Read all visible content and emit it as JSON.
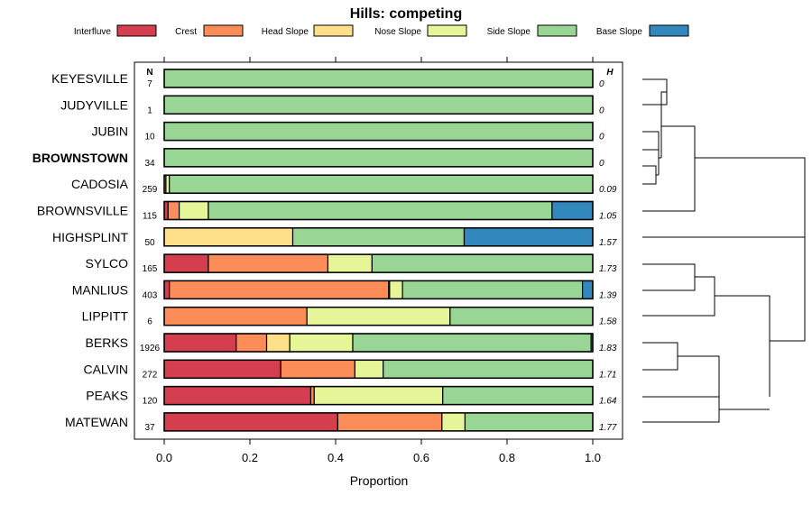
{
  "chart_data": {
    "type": "bar",
    "stacked": true,
    "orientation": "horizontal",
    "title": "Hills: competing",
    "xlabel": "Proportion",
    "xlim": [
      0,
      1
    ],
    "xticks": [
      "0.0",
      "0.2",
      "0.4",
      "0.6",
      "0.8",
      "1.0"
    ],
    "n_header": "N",
    "h_header": "H",
    "legend_placement": "top",
    "legend": [
      {
        "name": "Interfluve",
        "color": "#d53e4f"
      },
      {
        "name": "Crest",
        "color": "#fc8d59"
      },
      {
        "name": "Head Slope",
        "color": "#fee08b"
      },
      {
        "name": "Nose Slope",
        "color": "#e6f598"
      },
      {
        "name": "Side Slope",
        "color": "#99d594"
      },
      {
        "name": "Base Slope",
        "color": "#3288bd"
      }
    ],
    "rows": [
      {
        "label": "KEYESVILLE",
        "n": "7",
        "h": "0",
        "bold": false,
        "values": [
          0,
          0,
          0,
          0,
          1.0,
          0
        ]
      },
      {
        "label": "JUDYVILLE",
        "n": "1",
        "h": "0",
        "bold": false,
        "values": [
          0,
          0,
          0,
          0,
          1.0,
          0
        ]
      },
      {
        "label": "JUBIN",
        "n": "10",
        "h": "0",
        "bold": false,
        "values": [
          0,
          0,
          0,
          0,
          1.0,
          0
        ]
      },
      {
        "label": "BROWNSTOWN",
        "n": "34",
        "h": "0",
        "bold": true,
        "values": [
          0,
          0,
          0,
          0,
          1.0,
          0
        ]
      },
      {
        "label": "CADOSIA",
        "n": "259",
        "h": "0.09",
        "bold": false,
        "values": [
          0,
          0.004,
          0,
          0.008,
          0.988,
          0
        ]
      },
      {
        "label": "BROWNSVILLE",
        "n": "115",
        "h": "1.05",
        "bold": false,
        "values": [
          0.009,
          0.026,
          0,
          0.068,
          0.802,
          0.095
        ]
      },
      {
        "label": "HIGHSPLINT",
        "n": "50",
        "h": "1.57",
        "bold": false,
        "values": [
          0,
          0,
          0.3,
          0,
          0.4,
          0.3
        ]
      },
      {
        "label": "SYLCO",
        "n": "165",
        "h": "1.73",
        "bold": false,
        "values": [
          0.103,
          0.279,
          0,
          0.103,
          0.515,
          0
        ]
      },
      {
        "label": "MANLIUS",
        "n": "403",
        "h": "1.39",
        "bold": false,
        "values": [
          0.012,
          0.512,
          0.002,
          0.03,
          0.42,
          0.024
        ]
      },
      {
        "label": "LIPPITT",
        "n": "6",
        "h": "1.58",
        "bold": false,
        "values": [
          0,
          0.333,
          0,
          0.334,
          0.333,
          0
        ]
      },
      {
        "label": "BERKS",
        "n": "1926",
        "h": "1.83",
        "bold": false,
        "values": [
          0.168,
          0.071,
          0.054,
          0.147,
          0.556,
          0.004
        ]
      },
      {
        "label": "CALVIN",
        "n": "272",
        "h": "1.71",
        "bold": false,
        "values": [
          0.272,
          0.173,
          0,
          0.066,
          0.489,
          0
        ]
      },
      {
        "label": "PEAKS",
        "n": "120",
        "h": "1.64",
        "bold": false,
        "values": [
          0.342,
          0.008,
          0,
          0.3,
          0.35,
          0
        ]
      },
      {
        "label": "MATEWAN",
        "n": "37",
        "h": "1.77",
        "bold": false,
        "values": [
          0.405,
          0.243,
          0,
          0.054,
          0.298,
          0
        ]
      }
    ]
  }
}
